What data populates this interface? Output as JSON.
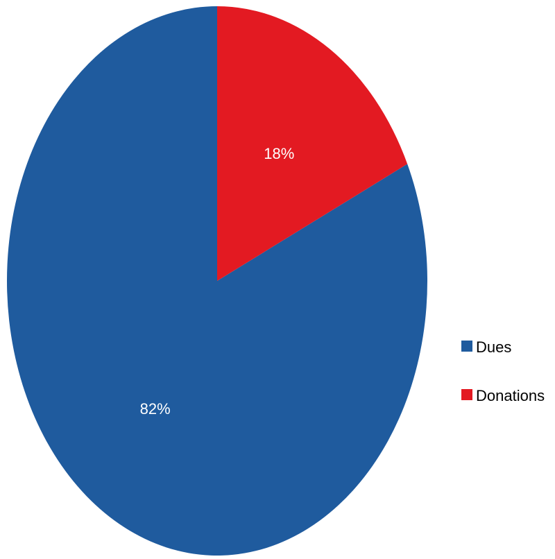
{
  "chart_data": {
    "type": "pie",
    "categories": [
      "Dues",
      "Donations"
    ],
    "values": [
      82,
      18
    ],
    "data_labels": [
      "82%",
      "18%"
    ],
    "colors": [
      "#1f5b9e",
      "#e31a22"
    ],
    "start_angle_deg": 0,
    "direction": "counterclockwise",
    "legend": "right",
    "title": ""
  }
}
